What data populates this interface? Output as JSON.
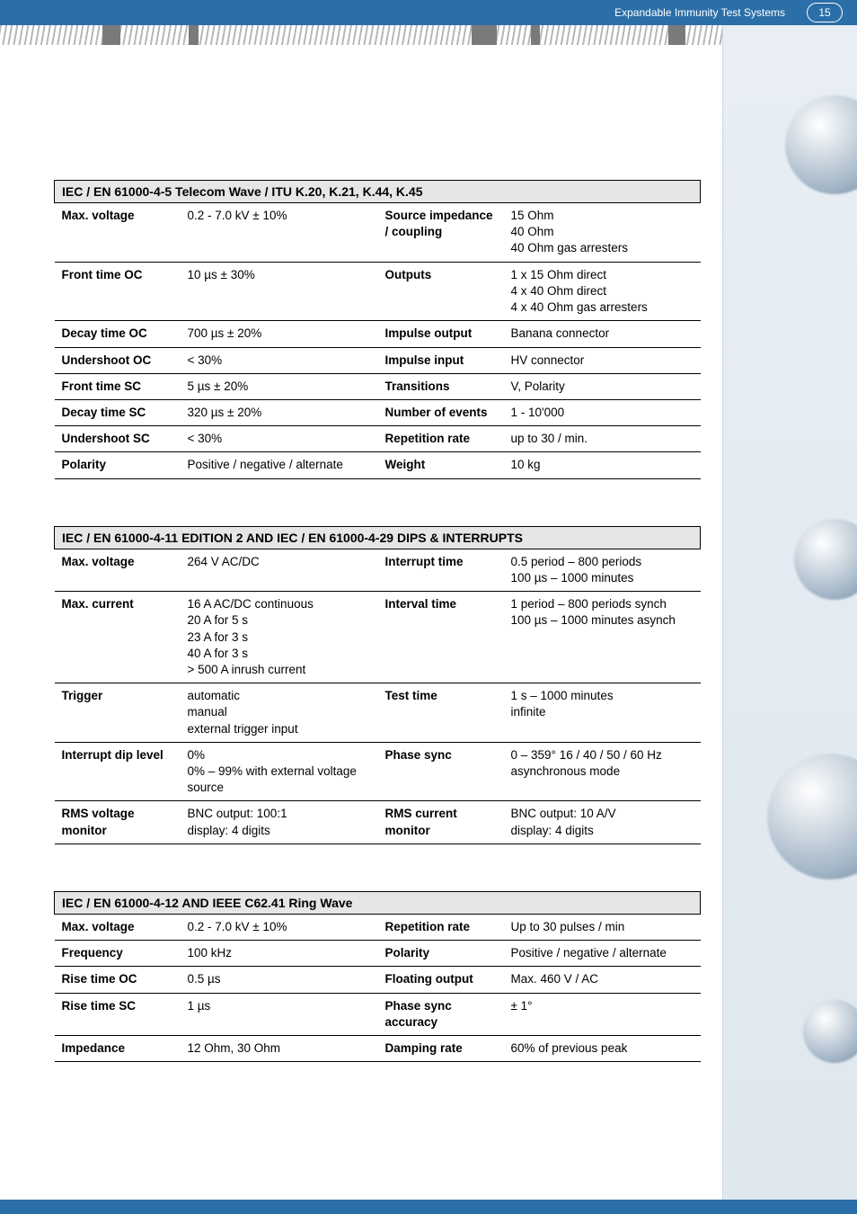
{
  "header": {
    "breadcrumb": "Expandable Immunity Test Systems",
    "page_number": "15"
  },
  "tables": [
    {
      "title": "IEC / EN 61000-4-5 Telecom Wave / ITU K.20, K.21, K.44, K.45",
      "rows": [
        {
          "l1": "Max. voltage",
          "v1": "0.2 - 7.0 kV ± 10%",
          "l2": "Source impedance / coupling",
          "v2": "15 Ohm\n40 Ohm\n40 Ohm gas arresters"
        },
        {
          "l1": "Front time OC",
          "v1": "10 µs ± 30%",
          "l2": "Outputs",
          "v2": "1 x 15 Ohm direct\n4 x 40 Ohm direct\n4 x 40 Ohm gas arresters"
        },
        {
          "l1": "Decay time OC",
          "v1": "700 µs ± 20%",
          "l2": "Impulse output",
          "v2": "Banana connector"
        },
        {
          "l1": "Undershoot OC",
          "v1": "< 30%",
          "l2": "Impulse input",
          "v2": "HV connector"
        },
        {
          "l1": "Front time SC",
          "v1": "5 µs ± 20%",
          "l2": "Transitions",
          "v2": "V, Polarity"
        },
        {
          "l1": "Decay time SC",
          "v1": "320 µs ± 20%",
          "l2": "Number of events",
          "v2": "1 - 10'000"
        },
        {
          "l1": "Undershoot SC",
          "v1": "< 30%",
          "l2": "Repetition rate",
          "v2": "up to 30 / min."
        },
        {
          "l1": "Polarity",
          "v1": "Positive / negative / alternate",
          "l2": "Weight",
          "v2": "10 kg"
        }
      ]
    },
    {
      "title": "IEC / EN 61000-4-11 EDITION 2 AND IEC / EN 61000-4-29 DIPS & INTERRUPTS",
      "rows": [
        {
          "l1": "Max. voltage",
          "v1": "264 V AC/DC",
          "l2": "Interrupt time",
          "v2": "0.5 period – 800 periods\n100 µs – 1000 minutes"
        },
        {
          "l1": "Max. current",
          "v1": "16 A AC/DC continuous\n20 A for 5 s\n23 A for 3 s\n40 A for 3 s\n> 500 A inrush current",
          "l2": "Interval time",
          "v2": "1 period – 800 periods synch\n100 µs – 1000 minutes asynch"
        },
        {
          "l1": "Trigger",
          "v1": "automatic\nmanual\nexternal trigger input",
          "l2": "Test time",
          "v2": "1 s – 1000 minutes\ninfinite"
        },
        {
          "l1": "Interrupt dip level",
          "v1": "0%\n0% – 99% with external voltage source",
          "l2": "Phase sync",
          "v2": "0 – 359°   16 / 40 / 50 / 60 Hz\nasynchronous mode"
        },
        {
          "l1": "RMS voltage monitor",
          "v1": "BNC output: 100:1\ndisplay: 4 digits",
          "l2": "RMS current monitor",
          "v2": "BNC output: 10 A/V\ndisplay: 4 digits"
        }
      ]
    },
    {
      "title": "IEC / EN 61000-4-12 AND IEEE C62.41 Ring Wave",
      "rows": [
        {
          "l1": "Max. voltage",
          "v1": "0.2 - 7.0 kV ± 10%",
          "l2": "Repetition rate",
          "v2": "Up to 30 pulses / min"
        },
        {
          "l1": "Frequency",
          "v1": "100 kHz",
          "l2": "Polarity",
          "v2": "Positive / negative / alternate"
        },
        {
          "l1": "Rise time OC",
          "v1": "0.5 µs",
          "l2": "Floating output",
          "v2": "Max. 460 V / AC"
        },
        {
          "l1": "Rise time SC",
          "v1": "1 µs",
          "l2": "Phase sync accuracy",
          "v2": "± 1°"
        },
        {
          "l1": "Impedance",
          "v1": "12 Ohm, 30 Ohm",
          "l2": "Damping rate",
          "v2": "60% of previous peak"
        }
      ]
    }
  ],
  "style": {
    "header_bg": "#2b6fa8",
    "title_row_bg": "#e6e6e6",
    "font_size_body": 13.5,
    "font_size_title": 14
  }
}
